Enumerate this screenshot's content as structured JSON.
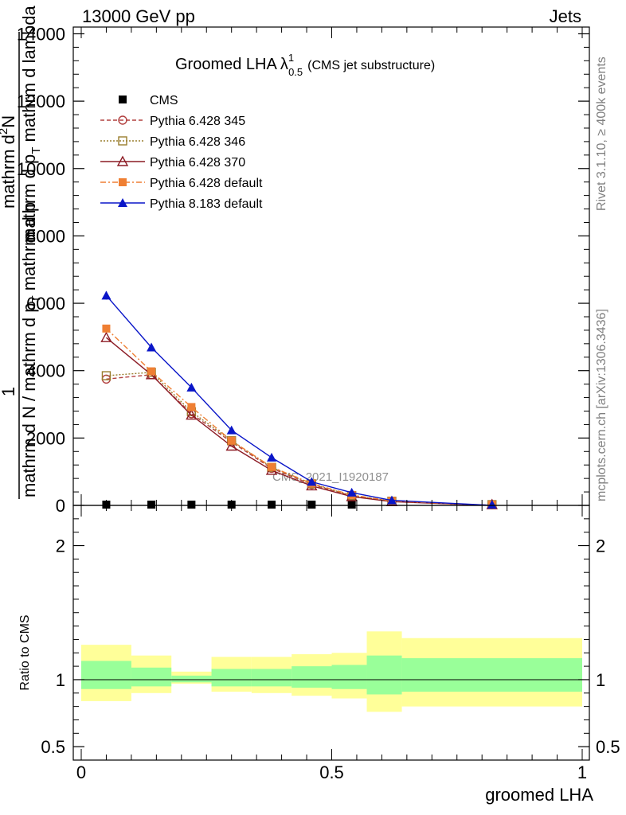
{
  "header": {
    "left": "13000 GeV pp",
    "right": "Jets"
  },
  "side_labels": {
    "rivet": "Rivet 3.1.10, ≥ 400k events",
    "mcplots": "mcplots.cern.ch [arXiv:1306.3436]"
  },
  "watermark": "CMS_2021_I1920187",
  "title": {
    "main": "Groomed LHA",
    "lambda": "λ",
    "sup": "1",
    "sub": "0.5",
    "paren": "(CMS jet substructure)"
  },
  "ylabel_main": {
    "one": "1",
    "den": "mathrm d N / mathrm d p",
    "den_sub": "T",
    "den2": "mathrm d p",
    "num1": "mathrm d",
    "num_sup": "2",
    "num2": "N",
    "num_den": "mathrm d p",
    "num_den_sub": "T",
    "num_den2": "mathrm d lambda"
  },
  "ylabel_ratio": "Ratio to CMS",
  "xlabel": "groomed LHA",
  "chart_data": [
    {
      "type": "line",
      "title": "Groomed LHA λ^1_0.5 (CMS jet substructure)",
      "xlabel": "groomed LHA",
      "ylabel": "1 / N dN/dpT · d²N/(dpT dλ)",
      "xlim": [
        0,
        1
      ],
      "ylim": [
        0,
        14200
      ],
      "xticks": [
        0,
        0.5,
        1
      ],
      "xtick_labels": [
        "0",
        "0.5",
        "1"
      ],
      "yticks": [
        0,
        2000,
        4000,
        6000,
        8000,
        10000,
        12000,
        14000
      ],
      "ytick_labels": [
        "0",
        "2000",
        "4000",
        "6000",
        "8000",
        "10000",
        "12000",
        "14000"
      ],
      "legend_position": "top-left",
      "series": [
        {
          "name": "CMS",
          "marker": "filled-square",
          "color": "#000000",
          "dash": "none",
          "x": [
            0.05,
            0.14,
            0.22,
            0.3,
            0.38,
            0.46,
            0.54
          ],
          "y": [
            5,
            4,
            4,
            4,
            3,
            3,
            2
          ]
        },
        {
          "name": "Pythia 6.428 345",
          "marker": "open-circle",
          "color": "#b2403f",
          "dash": "5,3",
          "x": [
            0.05,
            0.14,
            0.22,
            0.3,
            0.38,
            0.46,
            0.54,
            0.62,
            0.82
          ],
          "y": [
            3750,
            3880,
            2720,
            1880,
            1100,
            620,
            280,
            120,
            0
          ]
        },
        {
          "name": "Pythia 6.428 346",
          "marker": "open-square",
          "color": "#9a7e2e",
          "dash": "2,2",
          "x": [
            0.05,
            0.14,
            0.22,
            0.3,
            0.38,
            0.46,
            0.54,
            0.62,
            0.82
          ],
          "y": [
            3850,
            3950,
            2780,
            1920,
            1130,
            640,
            290,
            125,
            0
          ]
        },
        {
          "name": "Pythia 6.428 370",
          "marker": "open-triangle",
          "color": "#8c1b24",
          "dash": "none",
          "x": [
            0.05,
            0.14,
            0.22,
            0.3,
            0.38,
            0.46,
            0.54,
            0.62,
            0.82
          ],
          "y": [
            4980,
            3880,
            2680,
            1760,
            1040,
            580,
            260,
            110,
            0
          ]
        },
        {
          "name": "Pythia 6.428 default",
          "marker": "filled-square",
          "color": "#ef7f33",
          "dash": "7,3,2,3",
          "x": [
            0.05,
            0.14,
            0.22,
            0.3,
            0.38,
            0.46,
            0.54,
            0.62,
            0.82
          ],
          "y": [
            5250,
            3980,
            2920,
            1920,
            1140,
            650,
            310,
            130,
            0
          ]
        },
        {
          "name": "Pythia 8.183 default",
          "marker": "filled-triangle",
          "color": "#0a16c8",
          "dash": "none",
          "x": [
            0.05,
            0.14,
            0.22,
            0.3,
            0.38,
            0.46,
            0.54,
            0.62,
            0.82
          ],
          "y": [
            6230,
            4690,
            3500,
            2230,
            1420,
            700,
            380,
            150,
            0
          ],
          "err": [
            120,
            90,
            70,
            50,
            40,
            30,
            20,
            10,
            0
          ]
        }
      ]
    },
    {
      "type": "area",
      "title": "Ratio to CMS",
      "ylabel": "Ratio to CMS",
      "xlim": [
        0,
        1
      ],
      "ylim": [
        0.4,
        2.3
      ],
      "yticks": [
        0.5,
        1,
        2
      ],
      "ytick_labels": [
        "0.5",
        "1",
        "2"
      ],
      "bins": [
        {
          "x0": 0.0,
          "x1": 0.1,
          "g_lo": 0.93,
          "g_hi": 1.14,
          "y_lo": 0.84,
          "y_hi": 1.26
        },
        {
          "x0": 0.1,
          "x1": 0.18,
          "g_lo": 0.95,
          "g_hi": 1.09,
          "y_lo": 0.9,
          "y_hi": 1.18
        },
        {
          "x0": 0.18,
          "x1": 0.26,
          "g_lo": 0.98,
          "g_hi": 1.03,
          "y_lo": 0.97,
          "y_hi": 1.06
        },
        {
          "x0": 0.26,
          "x1": 0.34,
          "g_lo": 0.95,
          "g_hi": 1.08,
          "y_lo": 0.91,
          "y_hi": 1.17
        },
        {
          "x0": 0.34,
          "x1": 0.42,
          "g_lo": 0.95,
          "g_hi": 1.08,
          "y_lo": 0.9,
          "y_hi": 1.17
        },
        {
          "x0": 0.42,
          "x1": 0.5,
          "g_lo": 0.94,
          "g_hi": 1.1,
          "y_lo": 0.88,
          "y_hi": 1.19
        },
        {
          "x0": 0.5,
          "x1": 0.57,
          "g_lo": 0.93,
          "g_hi": 1.11,
          "y_lo": 0.86,
          "y_hi": 1.2
        },
        {
          "x0": 0.57,
          "x1": 0.64,
          "g_lo": 0.89,
          "g_hi": 1.18,
          "y_lo": 0.76,
          "y_hi": 1.36
        },
        {
          "x0": 0.64,
          "x1": 1.0,
          "g_lo": 0.91,
          "g_hi": 1.16,
          "y_lo": 0.8,
          "y_hi": 1.31
        }
      ],
      "reference": 1
    }
  ]
}
